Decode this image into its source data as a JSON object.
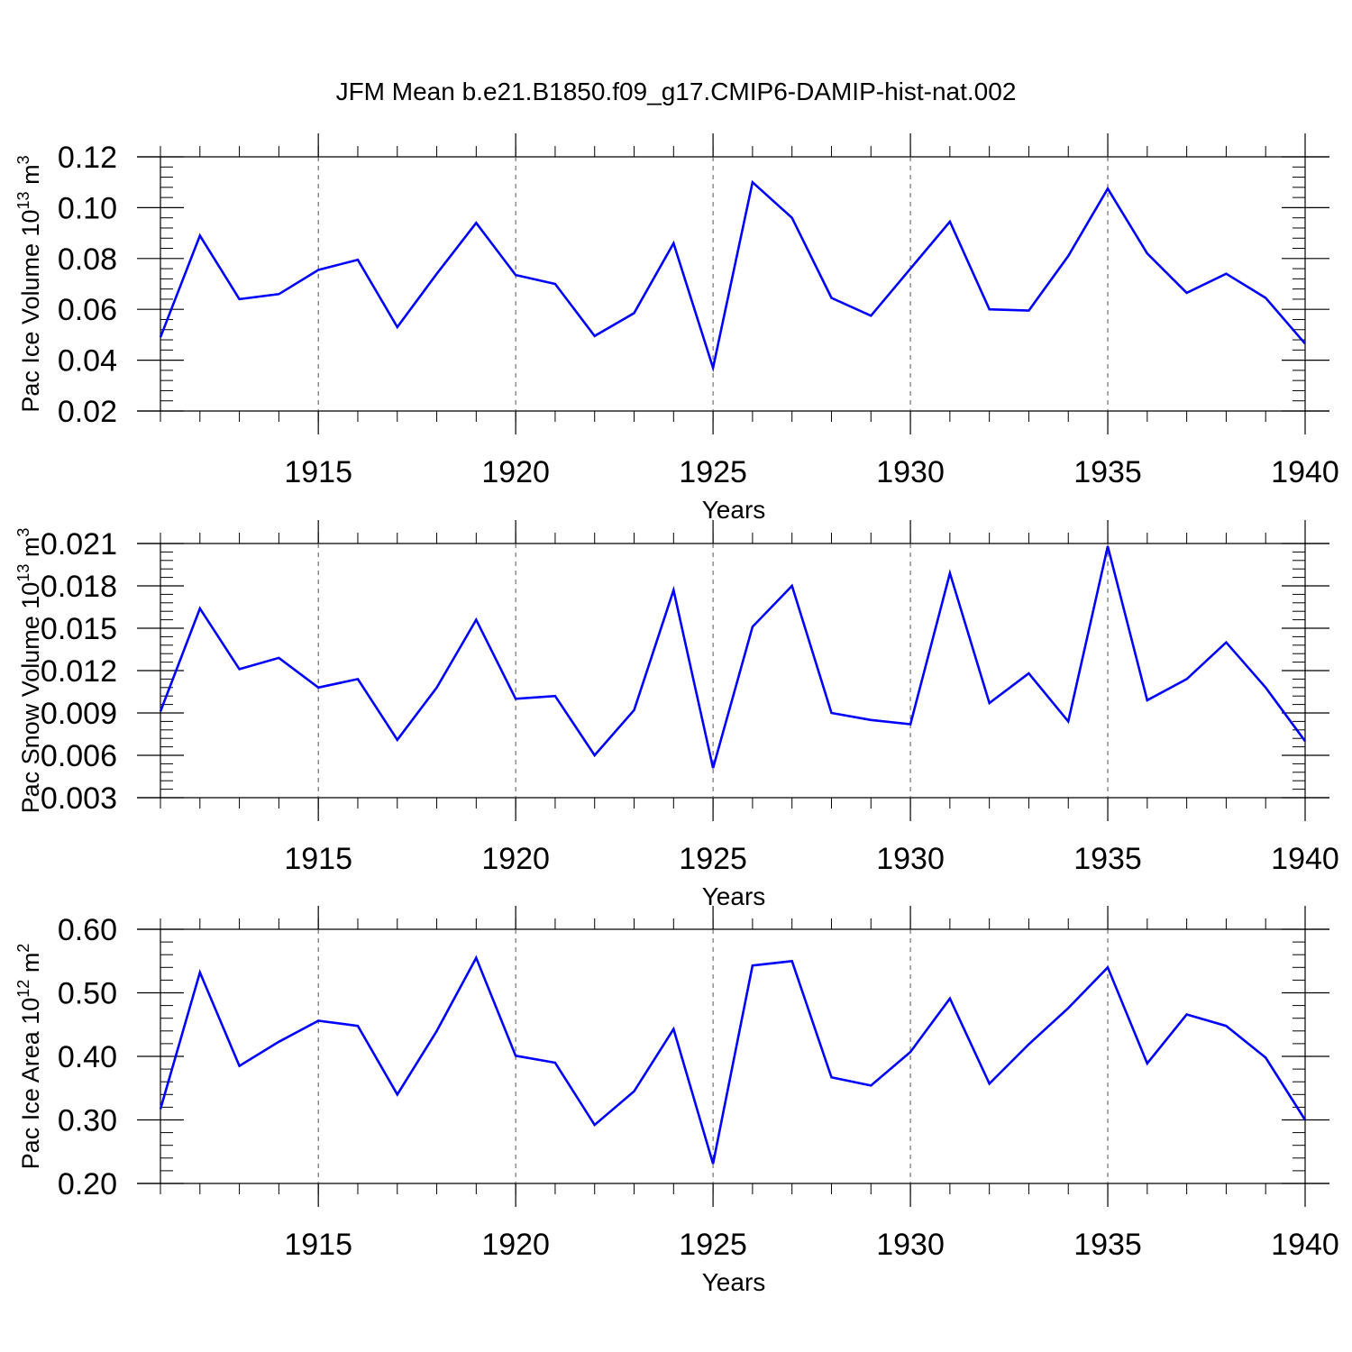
{
  "title": "JFM Mean b.e21.B1850.f09_g17.CMIP6-DAMIP-hist-nat.002",
  "line_color": "#0000ff",
  "chart_data": [
    {
      "type": "line",
      "xlabel": "Years",
      "ylabel_main": "Pac Ice Volume 10",
      "ylabel_exp": "13",
      "ylabel_unit": " m",
      "ylabel_unit_exp": "3",
      "xlim": [
        1911,
        1940
      ],
      "ylim": [
        0.02,
        0.12
      ],
      "xticks": [
        1915,
        1920,
        1925,
        1930,
        1935,
        1940
      ],
      "yticks": [
        0.02,
        0.04,
        0.06,
        0.08,
        0.1,
        0.12
      ],
      "ytick_labels": [
        "0.02",
        "0.04",
        "0.06",
        "0.08",
        "0.10",
        "0.12"
      ],
      "ygrid": false,
      "xgrid": "dashed at major ticks",
      "x": [
        1911,
        1912,
        1913,
        1914,
        1915,
        1916,
        1917,
        1918,
        1919,
        1920,
        1921,
        1922,
        1923,
        1924,
        1925,
        1926,
        1927,
        1928,
        1929,
        1930,
        1931,
        1932,
        1933,
        1934,
        1935,
        1936,
        1937,
        1938,
        1939,
        1940
      ],
      "series": [
        {
          "values": [
            0.049,
            0.089,
            0.064,
            0.066,
            0.0755,
            0.0795,
            0.053,
            0.074,
            0.094,
            0.0735,
            0.07,
            0.0495,
            0.0585,
            0.086,
            0.037,
            0.11,
            0.096,
            0.0645,
            0.0575,
            0.076,
            0.0945,
            0.06,
            0.0595,
            0.081,
            0.1075,
            0.082,
            0.0665,
            0.074,
            0.0645,
            0.0465
          ]
        }
      ]
    },
    {
      "type": "line",
      "xlabel": "Years",
      "ylabel_main": "Pac Snow Volume 10",
      "ylabel_exp": "13",
      "ylabel_unit": " m",
      "ylabel_unit_exp": "3",
      "xlim": [
        1911,
        1940
      ],
      "ylim": [
        0.003,
        0.021
      ],
      "xticks": [
        1915,
        1920,
        1925,
        1930,
        1935,
        1940
      ],
      "yticks": [
        0.003,
        0.006,
        0.009,
        0.012,
        0.015,
        0.018,
        0.021
      ],
      "ytick_labels": [
        "0.003",
        "0.006",
        "0.009",
        "0.012",
        "0.015",
        "0.018",
        "0.021"
      ],
      "ygrid": false,
      "xgrid": "dashed at major ticks",
      "x": [
        1911,
        1912,
        1913,
        1914,
        1915,
        1916,
        1917,
        1918,
        1919,
        1920,
        1921,
        1922,
        1923,
        1924,
        1925,
        1926,
        1927,
        1928,
        1929,
        1930,
        1931,
        1932,
        1933,
        1934,
        1935,
        1936,
        1937,
        1938,
        1939,
        1940
      ],
      "series": [
        {
          "values": [
            0.0091,
            0.0164,
            0.0121,
            0.0129,
            0.0108,
            0.0114,
            0.0071,
            0.0108,
            0.0156,
            0.01,
            0.0102,
            0.006,
            0.0092,
            0.0177,
            0.0051,
            0.0151,
            0.018,
            0.009,
            0.0085,
            0.0082,
            0.0189,
            0.0097,
            0.0118,
            0.0084,
            0.0208,
            0.0099,
            0.0114,
            0.014,
            0.0108,
            0.007
          ]
        }
      ]
    },
    {
      "type": "line",
      "xlabel": "Years",
      "ylabel_main": "Pac Ice Area 10",
      "ylabel_exp": "12",
      "ylabel_unit": " m",
      "ylabel_unit_exp": "2",
      "xlim": [
        1911,
        1940
      ],
      "ylim": [
        0.2,
        0.6
      ],
      "xticks": [
        1915,
        1920,
        1925,
        1930,
        1935,
        1940
      ],
      "yticks": [
        0.2,
        0.3,
        0.4,
        0.5,
        0.6
      ],
      "ytick_labels": [
        "0.20",
        "0.30",
        "0.40",
        "0.50",
        "0.60"
      ],
      "ygrid": false,
      "xgrid": "dashed at major ticks",
      "x": [
        1911,
        1912,
        1913,
        1914,
        1915,
        1916,
        1917,
        1918,
        1919,
        1920,
        1921,
        1922,
        1923,
        1924,
        1925,
        1926,
        1927,
        1928,
        1929,
        1930,
        1931,
        1932,
        1933,
        1934,
        1935,
        1936,
        1937,
        1938,
        1939,
        1940
      ],
      "series": [
        {
          "values": [
            0.317,
            0.532,
            0.385,
            0.423,
            0.456,
            0.448,
            0.34,
            0.44,
            0.555,
            0.401,
            0.39,
            0.292,
            0.345,
            0.443,
            0.231,
            0.543,
            0.55,
            0.367,
            0.354,
            0.407,
            0.491,
            0.357,
            0.419,
            0.476,
            0.54,
            0.389,
            0.466,
            0.448,
            0.398,
            0.3
          ]
        }
      ]
    }
  ]
}
